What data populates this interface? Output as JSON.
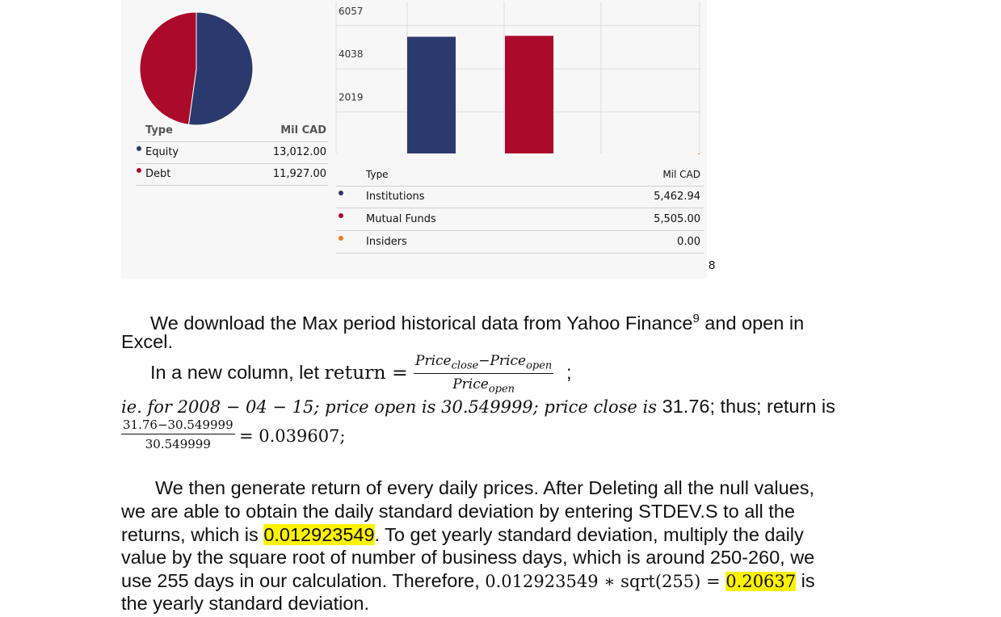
{
  "chart_data": [
    {
      "type": "pie",
      "series": [
        {
          "name": "Equity",
          "value": 13012.0,
          "color": "#2b3a6e"
        },
        {
          "name": "Debt",
          "value": 11927.0,
          "color": "#ab0a2a"
        }
      ]
    },
    {
      "type": "bar",
      "categories": [
        "Institutions",
        "Mutual Funds",
        "Insiders"
      ],
      "values": [
        5462.94,
        5505.0,
        0.0
      ],
      "colors": [
        "#2b3a6e",
        "#ab0a2a",
        "#f07d22"
      ],
      "yticks": [
        "2019",
        "4038",
        "6057"
      ],
      "ylim": [
        0,
        6730
      ]
    }
  ],
  "pie_table": {
    "col_type": "Type",
    "col_unit": "Mil CAD",
    "rows": [
      {
        "label": "Equity",
        "value": "13,012.00",
        "color": "#2b3a6e"
      },
      {
        "label": "Debt",
        "value": "11,927.00",
        "color": "#ab0a2a"
      }
    ]
  },
  "bar_table": {
    "col_type": "Type",
    "col_unit": "Mil CAD",
    "rows": [
      {
        "label": "Institutions",
        "value": "5,462.94",
        "color": "#2b3a6e"
      },
      {
        "label": "Mutual Funds",
        "value": "5,505.00",
        "color": "#ab0a2a"
      },
      {
        "label": "Insiders",
        "value": "0.00",
        "color": "#f07d22"
      }
    ]
  },
  "footnote_marker": "8",
  "para1": {
    "line1": "We download the Max period historical data from Yahoo Finance",
    "sup": "9",
    "line1_end": " and open in",
    "line2": "Excel."
  },
  "formula": {
    "lead": "In a new column, let ",
    "var": "return",
    "eq": " = ",
    "num": "Price",
    "num_sub1": "close",
    "num_minus": "−Price",
    "num_sub2": "open",
    "den": "Price",
    "den_sub": "open",
    "end": ";"
  },
  "example": {
    "line": "ie. for 2008 − 04 − 15; price open is 30.549999; price close is ",
    "close_val": "31.76",
    "tail": "; thus; return is",
    "frac_num": "31.76−30.549999",
    "frac_den": "30.549999",
    "result": " = 0.039607;"
  },
  "para2": {
    "line1": "We then generate return of every daily prices. After Deleting all the null values,",
    "line2": "we are able to obtain the daily standard deviation by entering STDEV.S to all the",
    "line3_a": "returns, which is ",
    "line3_hl": "0.012923549",
    "line3_b": ". To get yearly standard deviation, multiply the daily",
    "line4": "value by the square root of number of business days, which is around 250-260, we",
    "line5_a": "use 255 days in our calculation. Therefore, ",
    "line5_math": "0.012923549 ∗ sqrt(255) = ",
    "line5_hl": "0.20637",
    "line5_b": " is",
    "line6": "the yearly standard deviation."
  }
}
